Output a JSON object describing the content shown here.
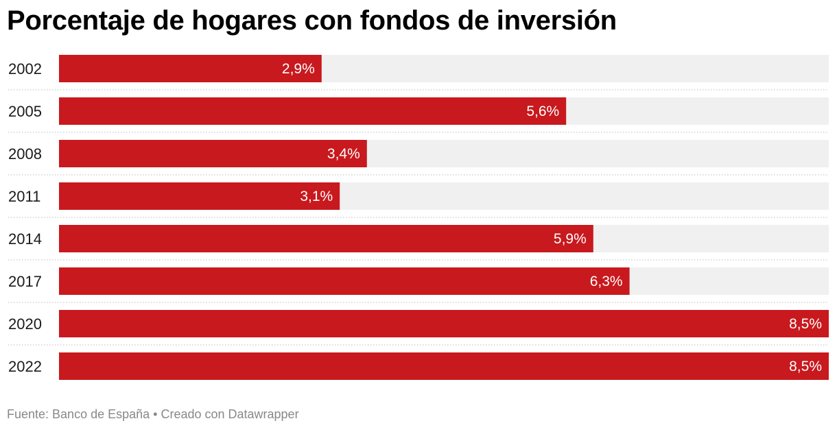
{
  "chart_data": {
    "type": "bar",
    "orientation": "horizontal",
    "title": "Porcentaje de hogares con fondos de inversión",
    "categories": [
      "2002",
      "2005",
      "2008",
      "2011",
      "2014",
      "2017",
      "2020",
      "2022"
    ],
    "values": [
      2.9,
      5.6,
      3.4,
      3.1,
      5.9,
      6.3,
      8.5,
      8.5
    ],
    "value_labels": [
      "2,9%",
      "5,6%",
      "3,4%",
      "3,1%",
      "5,9%",
      "6,3%",
      "8,5%",
      "8,5%"
    ],
    "xlim": [
      0,
      8.5
    ],
    "xlabel": "",
    "ylabel": "",
    "grid": false,
    "bar_color": "#c8191e",
    "track_color": "#f0f0f0",
    "separator_color": "#bbbbbb"
  },
  "footer": {
    "text": "Fuente: Banco de España • Creado con Datawrapper"
  }
}
